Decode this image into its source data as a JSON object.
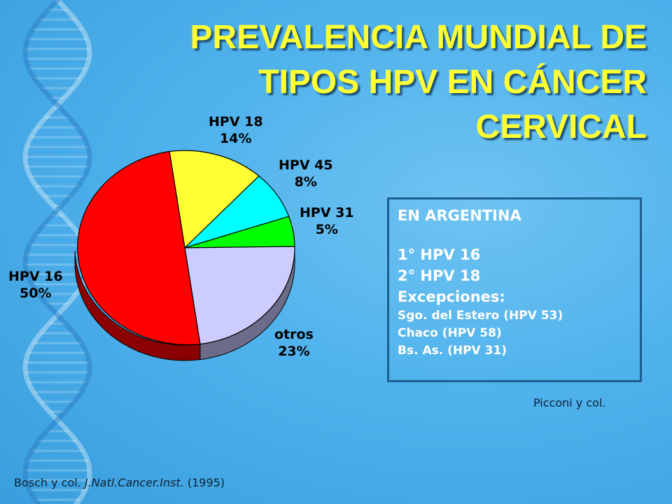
{
  "title_lines": [
    "PREVALENCIA MUNDIAL DE",
    "TIPOS HPV EN CÁNCER",
    "CERVICAL"
  ],
  "chart_data": {
    "type": "pie",
    "slices": [
      {
        "label": "HPV 16",
        "value": 50,
        "value_label": "50%",
        "color": "#ff0000",
        "side_color": "#8b0000"
      },
      {
        "label": "HPV 18",
        "value": 14,
        "value_label": "14%",
        "color": "#ffff33",
        "side_color": "#8b8b1a"
      },
      {
        "label": "HPV 45",
        "value": 8,
        "value_label": "8%",
        "color": "#00ffff",
        "side_color": "#008b8b"
      },
      {
        "label": "HPV 31",
        "value": 5,
        "value_label": "5%",
        "color": "#00ff00",
        "side_color": "#008b00"
      },
      {
        "label": "otros",
        "value": 23,
        "value_label": "23%",
        "color": "#ccccff",
        "side_color": "#6c6c8a"
      }
    ]
  },
  "infobox": {
    "heading": "EN ARGENTINA",
    "first": "1° HPV 16",
    "second": "2° HPV 18",
    "exceptions_label": "Excepciones:",
    "exceptions": [
      "Sgo. del Estero (HPV 53)",
      "Chaco (HPV 58)",
      "Bs. As. (HPV 31)"
    ]
  },
  "credits": {
    "picconi": "Picconi y col.",
    "bosch_authors": "Bosch y col.",
    "bosch_journal": "J.Natl.Cancer.Inst.",
    "bosch_year": "(1995)"
  }
}
